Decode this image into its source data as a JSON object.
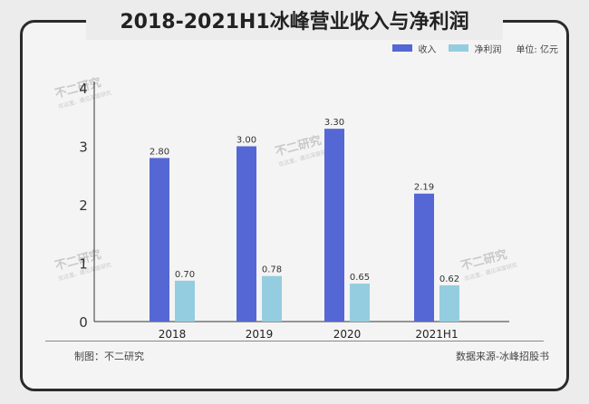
{
  "title": "2018-2021H1冰峰营业收入与净利润",
  "unit_label": "单位: 亿元",
  "footer": {
    "left": "制图：不二研究",
    "right": "数据来源-冰峰招股书"
  },
  "watermark": {
    "brand": "不二研究",
    "slogan": "在这里，遇见深度研究"
  },
  "chart_data": {
    "type": "bar",
    "categories": [
      "2018",
      "2019",
      "2020",
      "2021H1"
    ],
    "series": [
      {
        "name": "收入",
        "values": [
          2.8,
          3.0,
          3.3,
          2.19
        ],
        "color": "#5567d4"
      },
      {
        "name": "净利润",
        "values": [
          0.7,
          0.78,
          0.65,
          0.62
        ],
        "color": "#95cde0"
      }
    ],
    "yticks": [
      "0",
      "1",
      "2",
      "3",
      "4"
    ],
    "ylim": [
      0,
      4
    ],
    "xlabel": "",
    "ylabel": "",
    "legend_position": "top-right",
    "grid": false
  }
}
